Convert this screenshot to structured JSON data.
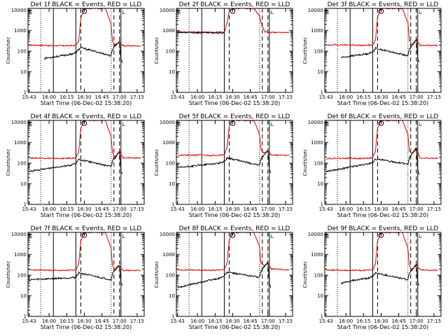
{
  "figure": {
    "rows": 3,
    "cols": 3,
    "colors": {
      "events": "#000000",
      "lld": "#e00000",
      "frame": "#000000",
      "background": "#ffffff"
    }
  },
  "chart_data": {
    "type": "line",
    "ylabel": "Counts/sec",
    "xlabel": "Start Time (06-Dec-02 15:38:20)",
    "xlim": [
      15.7,
      17.35
    ],
    "ylim": [
      1,
      12000
    ],
    "yscale": "log",
    "x_ticks": [
      {
        "value": 15.7167,
        "label": "15:43"
      },
      {
        "value": 16.0,
        "label": "16:00"
      },
      {
        "value": 16.25,
        "label": "16:15"
      },
      {
        "value": 16.5,
        "label": "16:30"
      },
      {
        "value": 16.75,
        "label": "16:45"
      },
      {
        "value": 17.0,
        "label": "17:00"
      },
      {
        "value": 17.25,
        "label": "17:15"
      }
    ],
    "y_ticks": [
      {
        "value": 1,
        "label": "1"
      },
      {
        "value": 10,
        "label": "10"
      },
      {
        "value": 100,
        "label": "100"
      },
      {
        "value": 1000,
        "label": "1000"
      },
      {
        "value": 10000,
        "label": "10000"
      }
    ],
    "vlines": {
      "dotted": [
        15.88,
        16.88
      ],
      "solid": [
        16.06,
        16.38,
        17.02
      ],
      "dashed": [
        16.45,
        16.92,
        17.0
      ]
    },
    "markers": {
      "circle_label": "O",
      "edge_label_left": "E",
      "edge_label_right": "L"
    },
    "panels": [
      {
        "title": "Det 1f BLACK = Events, RED = LLD",
        "lld": {
          "x": [
            15.72,
            16.0,
            16.2,
            16.38,
            16.42,
            16.45,
            16.5,
            16.8,
            16.88,
            16.9,
            16.94,
            17.0,
            17.05,
            17.3
          ],
          "y": [
            200,
            190,
            185,
            190,
            300,
            4000,
            12000,
            12000,
            2000,
            300,
            180,
            280,
            185,
            180
          ]
        },
        "events": {
          "x": [
            15.93,
            16.1,
            16.3,
            16.38,
            16.42,
            16.45,
            16.88,
            16.9,
            16.94,
            17.0,
            17.02,
            17.04
          ],
          "y": [
            45,
            55,
            70,
            85,
            120,
            150,
            60,
            120,
            200,
            300,
            40,
            30
          ]
        }
      },
      {
        "title": "Det 2f BLACK = Events, RED = LLD",
        "lld": {
          "x": [
            15.72,
            16.0,
            16.2,
            16.38,
            16.42,
            16.45,
            16.5,
            16.8,
            16.88,
            16.92,
            16.96,
            17.05,
            17.3
          ],
          "y": [
            850,
            850,
            820,
            830,
            2500,
            9000,
            12000,
            12000,
            5000,
            1500,
            850,
            830,
            800
          ]
        },
        "events": {
          "x": [
            15.72,
            16.0,
            16.2,
            16.38
          ],
          "y": [
            800,
            800,
            780,
            790
          ]
        }
      },
      {
        "title": "Det 3f BLACK = Events, RED = LLD",
        "lld": {
          "x": [
            15.72,
            16.0,
            16.2,
            16.38,
            16.42,
            16.45,
            16.5,
            16.8,
            16.88,
            16.9,
            16.94,
            17.0,
            17.05,
            17.3
          ],
          "y": [
            200,
            205,
            190,
            200,
            350,
            5000,
            12000,
            12000,
            2500,
            350,
            200,
            380,
            195,
            190
          ]
        },
        "events": {
          "x": [
            15.93,
            16.1,
            16.3,
            16.38,
            16.42,
            16.88,
            16.9,
            16.94,
            17.0,
            17.02,
            17.04
          ],
          "y": [
            50,
            60,
            75,
            90,
            140,
            60,
            120,
            200,
            350,
            40,
            30
          ]
        }
      },
      {
        "title": "Det 4f BLACK = Events, RED = LLD",
        "lld": {
          "x": [
            15.72,
            16.0,
            16.2,
            16.38,
            16.42,
            16.45,
            16.5,
            16.8,
            16.88,
            16.9,
            16.94,
            17.0,
            17.05,
            17.3
          ],
          "y": [
            180,
            175,
            170,
            180,
            350,
            5000,
            12000,
            12000,
            2000,
            350,
            180,
            400,
            185,
            180
          ]
        },
        "events": {
          "x": [
            15.72,
            15.9,
            16.1,
            16.3,
            16.38,
            16.42,
            16.88,
            16.9,
            16.94,
            17.0,
            17.02,
            17.04
          ],
          "y": [
            40,
            50,
            65,
            80,
            100,
            150,
            70,
            130,
            200,
            350,
            40,
            30
          ]
        }
      },
      {
        "title": "Det 5f BLACK = Events, RED = LLD",
        "lld": {
          "x": [
            15.72,
            16.0,
            16.2,
            16.38,
            16.42,
            16.45,
            16.5,
            16.8,
            16.88,
            16.9,
            16.94,
            17.0,
            17.05,
            17.3
          ],
          "y": [
            240,
            250,
            240,
            260,
            600,
            6000,
            12000,
            12000,
            2500,
            500,
            300,
            400,
            250,
            240
          ]
        },
        "events": {
          "x": [
            15.72,
            15.9,
            16.1,
            16.3,
            16.38,
            16.42,
            16.88,
            16.9,
            16.94,
            17.0,
            17.02,
            17.04
          ],
          "y": [
            60,
            70,
            85,
            100,
            120,
            180,
            80,
            150,
            250,
            400,
            50,
            35
          ]
        }
      },
      {
        "title": "Det 6f BLACK = Events, RED = LLD",
        "lld": {
          "x": [
            15.72,
            16.0,
            16.2,
            16.38,
            16.42,
            16.45,
            16.5,
            16.8,
            16.88,
            16.9,
            16.94,
            17.0,
            17.05,
            17.3
          ],
          "y": [
            170,
            175,
            170,
            180,
            400,
            5500,
            12000,
            12000,
            2500,
            400,
            300,
            600,
            180,
            170
          ]
        },
        "events": {
          "x": [
            15.72,
            15.9,
            16.1,
            16.3,
            16.38,
            16.42,
            16.88,
            16.9,
            16.94,
            17.0,
            17.02,
            17.04
          ],
          "y": [
            40,
            50,
            70,
            90,
            110,
            160,
            90,
            180,
            300,
            500,
            50,
            30
          ]
        }
      },
      {
        "title": "Det 7f BLACK = Events, RED = LLD",
        "lld": {
          "x": [
            15.72,
            16.0,
            16.2,
            16.38,
            16.42,
            16.45,
            16.5,
            16.8,
            16.88,
            16.9,
            16.94,
            17.0,
            17.05,
            17.3
          ],
          "y": [
            180,
            175,
            170,
            180,
            350,
            4500,
            12000,
            12000,
            2000,
            300,
            180,
            300,
            175,
            170
          ]
        },
        "events": {
          "x": [
            15.72,
            15.9,
            16.1,
            16.3,
            16.38,
            16.42,
            16.88,
            16.9,
            16.94,
            17.0,
            17.02,
            17.04
          ],
          "y": [
            60,
            65,
            70,
            75,
            80,
            130,
            60,
            120,
            200,
            300,
            40,
            30
          ]
        }
      },
      {
        "title": "Det 8f BLACK = Events, RED = LLD",
        "lld": {
          "x": [
            15.72,
            16.0,
            16.2,
            16.38,
            16.42,
            16.45,
            16.5,
            16.8,
            16.88,
            16.9,
            16.94,
            17.0,
            17.05,
            17.3
          ],
          "y": [
            180,
            180,
            170,
            190,
            400,
            5000,
            12000,
            12000,
            2500,
            400,
            300,
            380,
            200,
            180
          ]
        },
        "events": {
          "x": [
            15.72,
            15.9,
            16.1,
            16.3,
            16.38,
            16.42,
            16.88,
            16.9,
            16.94,
            17.0,
            17.02,
            17.04
          ],
          "y": [
            25,
            35,
            50,
            70,
            90,
            140,
            80,
            150,
            250,
            400,
            40,
            25
          ]
        }
      },
      {
        "title": "Det 9f BLACK = Events, RED = LLD",
        "lld": {
          "x": [
            15.72,
            16.0,
            16.2,
            16.38,
            16.42,
            16.45,
            16.5,
            16.8,
            16.88,
            16.9,
            16.94,
            17.0,
            17.05,
            17.3
          ],
          "y": [
            180,
            175,
            170,
            180,
            350,
            5000,
            12000,
            12000,
            2000,
            300,
            170,
            350,
            180,
            170
          ]
        },
        "events": {
          "x": [
            15.93,
            16.1,
            16.3,
            16.38,
            16.42,
            16.88,
            16.9,
            16.94,
            17.0,
            17.02,
            17.04
          ],
          "y": [
            40,
            55,
            70,
            85,
            130,
            60,
            120,
            200,
            300,
            40,
            30
          ]
        }
      }
    ]
  }
}
